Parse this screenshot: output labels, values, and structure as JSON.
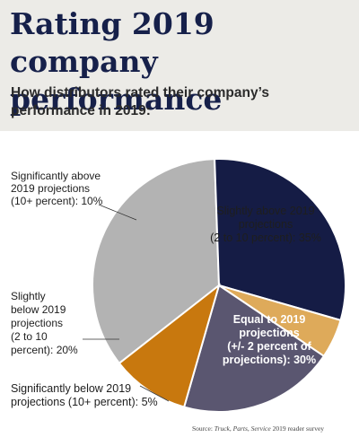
{
  "header": {
    "title_line1": "Rating 2019 company",
    "title_line2": "performance",
    "subtitle_line1": "How distributors rated their company’s",
    "subtitle_line2": "performance in 2019:"
  },
  "source": {
    "prefix": "Source: ",
    "publication": "Truck, Parts, Service",
    "suffix": " 2019 reader survey"
  },
  "colors": {
    "slightly_above": "#b3b3b3",
    "equal": "#151c45",
    "significantly_below": "#deaa5a",
    "slightly_below": "#5a5670",
    "significantly_above": "#c8780e",
    "header_bg": "#ecebe7"
  },
  "chart_data": {
    "type": "pie",
    "title": "",
    "slices": [
      {
        "key": "slightly_above",
        "label": "Slightly above 2019 projections (2 to 10 percent): 35%",
        "label_lines": [
          "Slightly above 2019",
          "projections",
          "(2 to 10 percent): 35%"
        ],
        "value": 35,
        "color": "#b3b3b3"
      },
      {
        "key": "equal",
        "label": "Equal to 2019 projections (+/- 2 percent of projections): 30%",
        "label_lines": [
          "Equal to 2019",
          "projections",
          "(+/- 2 percent of",
          "projections): 30%"
        ],
        "value": 30,
        "color": "#151c45"
      },
      {
        "key": "significantly_below",
        "label": "Significantly below 2019 projections (10+ percent): 5%",
        "label_lines": [
          "Significantly below 2019",
          "projections (10+ percent): 5%"
        ],
        "value": 5,
        "color": "#deaa5a"
      },
      {
        "key": "slightly_below",
        "label": "Slightly below 2019 projections (2 to 10 percent): 20%",
        "label_lines": [
          "Slightly",
          "below 2019",
          "projections",
          "(2 to 10",
          "percent): 20%"
        ],
        "value": 20,
        "color": "#5a5670"
      },
      {
        "key": "significantly_above",
        "label": "Significantly above 2019 projections (10+ percent): 10%",
        "label_lines": [
          "Significantly above",
          "2019 projections",
          "(10+ percent): 10%"
        ],
        "value": 10,
        "color": "#c8780e"
      }
    ],
    "legend": "none"
  }
}
